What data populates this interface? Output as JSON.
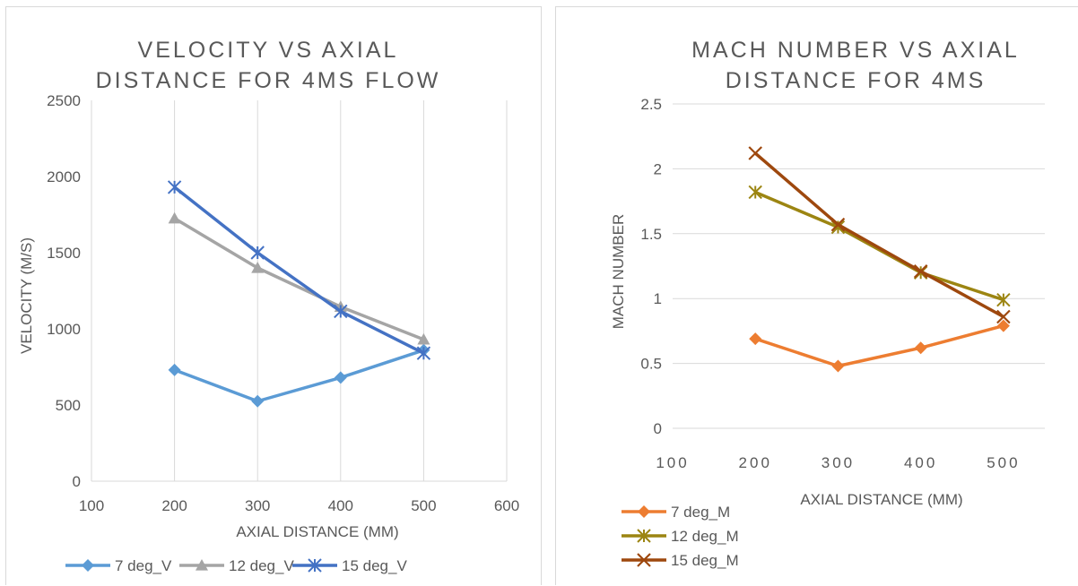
{
  "chart_data": [
    {
      "type": "line",
      "title_line1": "VELOCITY VS AXIAL",
      "title_line2": "DISTANCE FOR 4MS FLOW",
      "xlabel": "AXIAL DISTANCE (MM)",
      "ylabel": "VELOCITY (M/S)",
      "xlim": [
        100,
        600
      ],
      "ylim": [
        0,
        2500
      ],
      "xticks": [
        "100",
        "200",
        "300",
        "400",
        "500",
        "600"
      ],
      "yticks": [
        "0",
        "500",
        "1000",
        "1500",
        "2000",
        "2500"
      ],
      "grid": "vertical",
      "legend": "bottom",
      "x": [
        200,
        300,
        400,
        500
      ],
      "series": [
        {
          "name": "7 deg_V",
          "values": [
            730,
            525,
            680,
            860
          ],
          "color": "#5b9bd5",
          "marker": "diamond"
        },
        {
          "name": "12 deg_V",
          "values": [
            1725,
            1400,
            1145,
            930
          ],
          "color": "#a5a5a5",
          "marker": "triangle"
        },
        {
          "name": "15 deg_V",
          "values": [
            1930,
            1500,
            1115,
            840
          ],
          "color": "#4472c4",
          "marker": "asterisk"
        }
      ]
    },
    {
      "type": "line",
      "title_line1": "MACH NUMBER VS AXIAL",
      "title_line2": "DISTANCE FOR 4MS",
      "xlabel": "AXIAL DISTANCE (MM)",
      "ylabel": "MACH NUMBER",
      "xlim": [
        100,
        550
      ],
      "ylim": [
        0,
        2.5
      ],
      "xticks": [
        "100",
        "200",
        "300",
        "400",
        "500"
      ],
      "yticks": [
        "0",
        "0.5",
        "1",
        "1.5",
        "2",
        "2.5"
      ],
      "grid": "horizontal",
      "legend": "bottom-left",
      "x": [
        200,
        300,
        400,
        500
      ],
      "series": [
        {
          "name": "7 deg_M",
          "values": [
            0.69,
            0.48,
            0.62,
            0.79
          ],
          "color": "#ed7d31",
          "marker": "diamond"
        },
        {
          "name": "12 deg_M",
          "values": [
            1.82,
            1.55,
            1.2,
            0.99
          ],
          "color": "#9c8512",
          "marker": "asterisk"
        },
        {
          "name": "15 deg_M",
          "values": [
            2.12,
            1.57,
            1.21,
            0.86
          ],
          "color": "#9e480e",
          "marker": "x"
        }
      ]
    }
  ]
}
